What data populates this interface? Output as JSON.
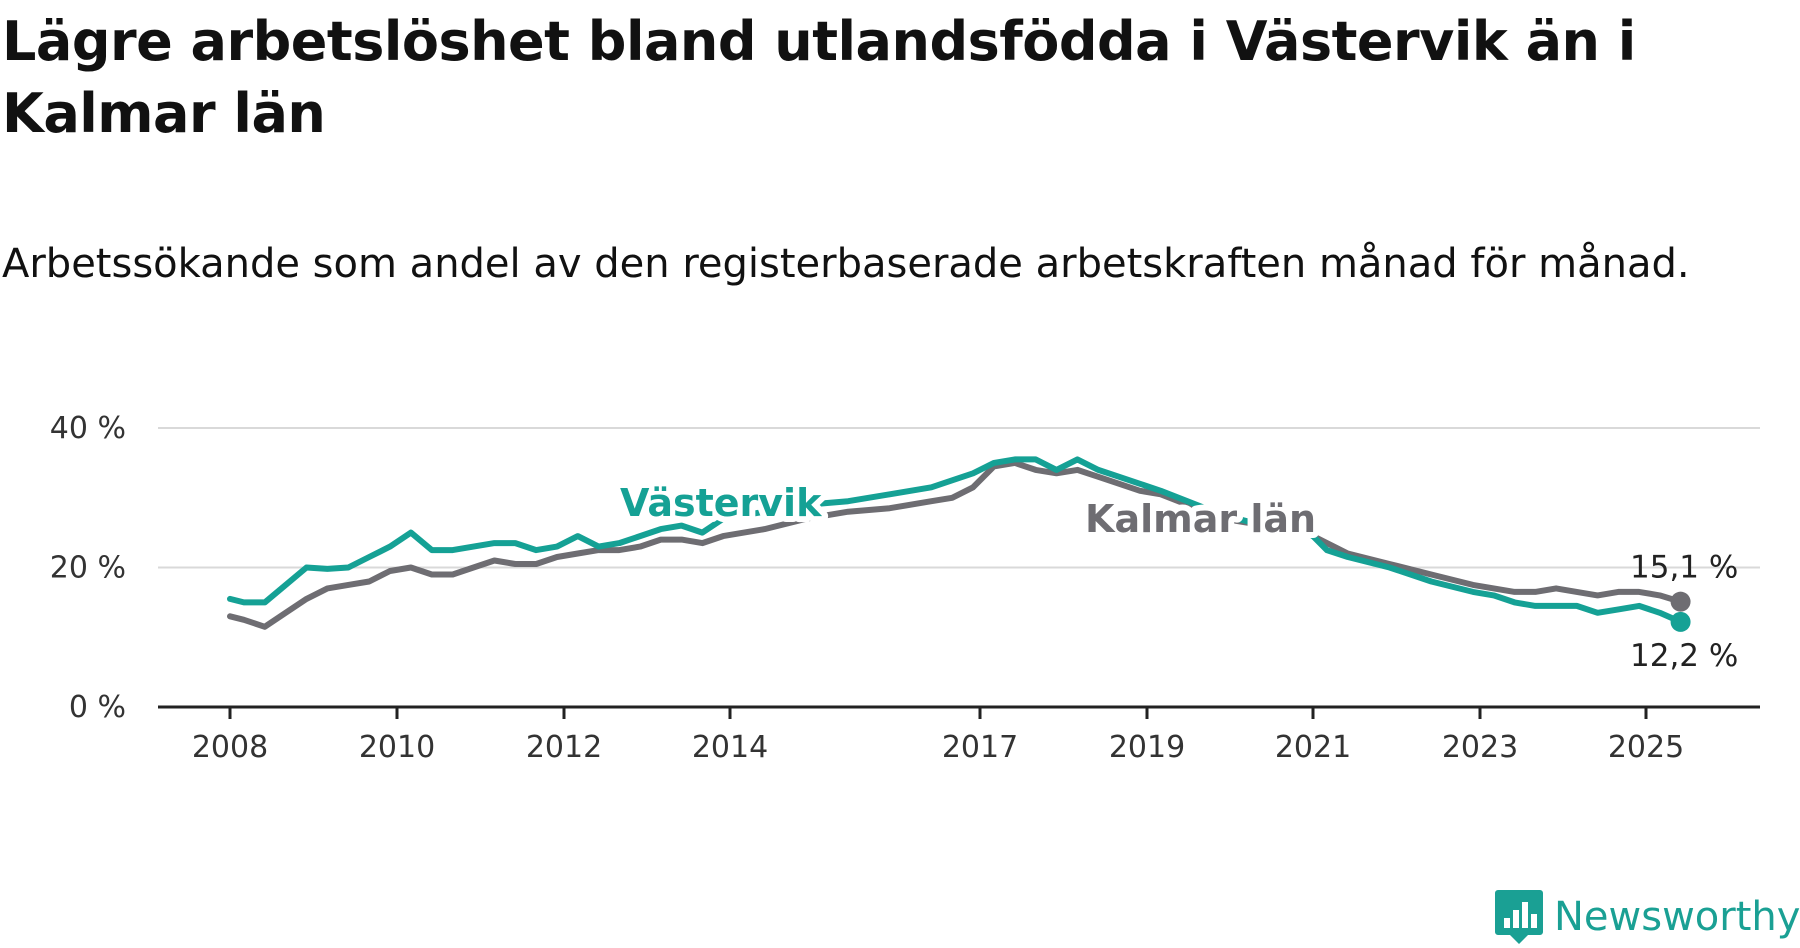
{
  "title": "Lägre arbetslöshet bland utlandsfödda i Västervik än i Kalmar län",
  "subtitle": "Arbetssökande som andel av den registerbaserade arbetskraften månad för månad.",
  "brand": {
    "name": "Newsworthy",
    "color": "#1aa094",
    "icon": "chart-bubble-icon"
  },
  "chart_data": {
    "type": "line",
    "title": "Lägre arbetslöshet bland utlandsfödda i Västervik än i Kalmar län",
    "subtitle": "Arbetssökande som andel av den registerbaserade arbetskraften månad för månad.",
    "xlabel": "",
    "ylabel": "",
    "x_ticks": [
      "2008",
      "2010",
      "2012",
      "2014",
      "2017",
      "2019",
      "2021",
      "2023",
      "2025"
    ],
    "y_ticks": [
      "0 %",
      "20 %",
      "40 %"
    ],
    "ylim": [
      0,
      40
    ],
    "grid": "horizontal",
    "x_note": "the axis prints 2014 then 2017; values are read at even spacing between the printed ticks",
    "series": [
      {
        "name": "Västervik",
        "color": "#15a195",
        "end_label": "12,2 %",
        "points": [
          [
            "2008-01",
            15.5
          ],
          [
            "2008-03",
            15.0
          ],
          [
            "2008-06",
            15.0
          ],
          [
            "2008-09",
            17.5
          ],
          [
            "2008-12",
            20.0
          ],
          [
            "2009-03",
            19.8
          ],
          [
            "2009-06",
            20.0
          ],
          [
            "2009-09",
            21.5
          ],
          [
            "2009-12",
            23.0
          ],
          [
            "2010-03",
            25.0
          ],
          [
            "2010-06",
            22.5
          ],
          [
            "2010-09",
            22.5
          ],
          [
            "2010-12",
            23.0
          ],
          [
            "2011-03",
            23.5
          ],
          [
            "2011-06",
            23.5
          ],
          [
            "2011-09",
            22.5
          ],
          [
            "2011-12",
            23.0
          ],
          [
            "2012-03",
            24.5
          ],
          [
            "2012-06",
            23.0
          ],
          [
            "2012-09",
            23.5
          ],
          [
            "2012-12",
            24.5
          ],
          [
            "2013-03",
            25.5
          ],
          [
            "2013-06",
            26.0
          ],
          [
            "2013-09",
            25.0
          ],
          [
            "2013-12",
            27.0
          ],
          [
            "2014-06",
            28.0
          ],
          [
            "2014-12",
            29.0
          ],
          [
            "2015-06",
            29.5
          ],
          [
            "2015-12",
            30.5
          ],
          [
            "2016-06",
            31.5
          ],
          [
            "2016-09",
            32.5
          ],
          [
            "2016-12",
            33.5
          ],
          [
            "2017-03",
            35.0
          ],
          [
            "2017-06",
            35.5
          ],
          [
            "2017-09",
            35.5
          ],
          [
            "2017-12",
            34.0
          ],
          [
            "2018-03",
            35.5
          ],
          [
            "2018-06",
            34.0
          ],
          [
            "2018-09",
            33.0
          ],
          [
            "2018-12",
            32.0
          ],
          [
            "2019-03",
            31.0
          ],
          [
            "2019-12",
            27.5
          ],
          [
            "2020-06",
            26.0
          ],
          [
            "2020-12",
            25.5
          ],
          [
            "2021-03",
            22.5
          ],
          [
            "2021-06",
            21.5
          ],
          [
            "2021-12",
            20.0
          ],
          [
            "2022-06",
            18.0
          ],
          [
            "2022-12",
            16.5
          ],
          [
            "2023-03",
            16.0
          ],
          [
            "2023-06",
            15.0
          ],
          [
            "2023-09",
            14.5
          ],
          [
            "2023-12",
            14.5
          ],
          [
            "2024-03",
            14.5
          ],
          [
            "2024-06",
            13.5
          ],
          [
            "2024-09",
            14.0
          ],
          [
            "2024-12",
            14.5
          ],
          [
            "2025-03",
            13.5
          ],
          [
            "2025-06",
            12.2
          ]
        ]
      },
      {
        "name": "Kalmar län",
        "color": "#6e6d72",
        "end_label": "15,1 %",
        "points": [
          [
            "2008-01",
            13.0
          ],
          [
            "2008-03",
            12.5
          ],
          [
            "2008-06",
            11.5
          ],
          [
            "2008-09",
            13.5
          ],
          [
            "2008-12",
            15.5
          ],
          [
            "2009-03",
            17.0
          ],
          [
            "2009-06",
            17.5
          ],
          [
            "2009-09",
            18.0
          ],
          [
            "2009-12",
            19.5
          ],
          [
            "2010-03",
            20.0
          ],
          [
            "2010-06",
            19.0
          ],
          [
            "2010-09",
            19.0
          ],
          [
            "2010-12",
            20.0
          ],
          [
            "2011-03",
            21.0
          ],
          [
            "2011-06",
            20.5
          ],
          [
            "2011-09",
            20.5
          ],
          [
            "2011-12",
            21.5
          ],
          [
            "2012-03",
            22.0
          ],
          [
            "2012-06",
            22.5
          ],
          [
            "2012-09",
            22.5
          ],
          [
            "2012-12",
            23.0
          ],
          [
            "2013-03",
            24.0
          ],
          [
            "2013-06",
            24.0
          ],
          [
            "2013-09",
            23.5
          ],
          [
            "2013-12",
            24.5
          ],
          [
            "2014-06",
            25.5
          ],
          [
            "2014-12",
            27.0
          ],
          [
            "2015-06",
            28.0
          ],
          [
            "2015-12",
            28.5
          ],
          [
            "2016-06",
            29.5
          ],
          [
            "2016-09",
            30.0
          ],
          [
            "2016-12",
            31.5
          ],
          [
            "2017-03",
            34.5
          ],
          [
            "2017-06",
            35.0
          ],
          [
            "2017-09",
            34.0
          ],
          [
            "2017-12",
            33.5
          ],
          [
            "2018-03",
            34.0
          ],
          [
            "2018-06",
            33.0
          ],
          [
            "2018-09",
            32.0
          ],
          [
            "2018-12",
            31.0
          ],
          [
            "2019-03",
            30.5
          ],
          [
            "2019-12",
            27.0
          ],
          [
            "2020-06",
            26.0
          ],
          [
            "2020-12",
            25.0
          ],
          [
            "2021-03",
            23.5
          ],
          [
            "2021-06",
            22.0
          ],
          [
            "2021-12",
            20.5
          ],
          [
            "2022-06",
            19.0
          ],
          [
            "2022-12",
            17.5
          ],
          [
            "2023-03",
            17.0
          ],
          [
            "2023-06",
            16.5
          ],
          [
            "2023-09",
            16.5
          ],
          [
            "2023-12",
            17.0
          ],
          [
            "2024-03",
            16.5
          ],
          [
            "2024-06",
            16.0
          ],
          [
            "2024-09",
            16.5
          ],
          [
            "2024-12",
            16.5
          ],
          [
            "2025-03",
            16.0
          ],
          [
            "2025-06",
            15.1
          ]
        ]
      }
    ]
  }
}
